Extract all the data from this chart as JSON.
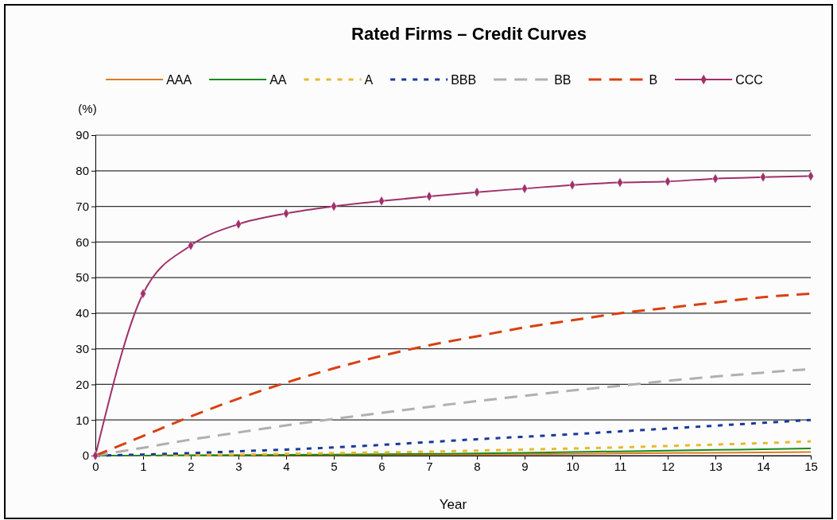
{
  "chart_data": {
    "type": "line",
    "title": "Rated Firms – Credit Curves",
    "xlabel": "Year",
    "ylabel": "(%)",
    "x": [
      0,
      1,
      2,
      3,
      4,
      5,
      6,
      7,
      8,
      9,
      10,
      11,
      12,
      13,
      14,
      15
    ],
    "xlim": [
      0,
      15
    ],
    "xticks": [
      0,
      1,
      2,
      3,
      4,
      5,
      6,
      7,
      8,
      9,
      10,
      11,
      12,
      13,
      14,
      15
    ],
    "ylim": [
      0,
      90
    ],
    "yticks": [
      0,
      10,
      20,
      30,
      40,
      50,
      60,
      70,
      80,
      90
    ],
    "grid": "y",
    "legend": "top",
    "marker": "none",
    "series": [
      {
        "name": "AAA",
        "color": "#e07b20",
        "line_style": "solid",
        "values": [
          0,
          0,
          0,
          0.1,
          0.1,
          0.1,
          0.2,
          0.2,
          0.3,
          0.4,
          0.5,
          0.6,
          0.7,
          0.8,
          0.9,
          1
        ]
      },
      {
        "name": "AA",
        "color": "#1a8a1a",
        "line_style": "solid",
        "values": [
          0,
          0,
          0.1,
          0.1,
          0.2,
          0.3,
          0.4,
          0.5,
          0.6,
          0.8,
          1,
          1.2,
          1.4,
          1.6,
          1.8,
          2
        ]
      },
      {
        "name": "A",
        "color": "#e8b830",
        "line_style": "dotted",
        "values": [
          0,
          0.1,
          0.2,
          0.3,
          0.5,
          0.7,
          0.9,
          1.1,
          1.4,
          1.7,
          2,
          2.3,
          2.7,
          3.1,
          3.5,
          4
        ]
      },
      {
        "name": "BBB",
        "color": "#1a3a9a",
        "line_style": "dotted",
        "values": [
          0,
          0.3,
          0.7,
          1.2,
          1.7,
          2.3,
          3,
          3.8,
          4.6,
          5.3,
          6,
          6.8,
          7.6,
          8.4,
          9.2,
          10
        ]
      },
      {
        "name": "BB",
        "color": "#b0b0b0",
        "line_style": "dashed",
        "values": [
          0,
          2.2,
          4.5,
          6.5,
          8.5,
          10.3,
          12,
          13.7,
          15.3,
          16.8,
          18.3,
          19.6,
          21,
          22.2,
          23.3,
          24.3
        ]
      },
      {
        "name": "B",
        "color": "#d84010",
        "line_style": "dashed",
        "values": [
          0,
          5.5,
          11,
          16,
          20.5,
          24.5,
          28,
          31,
          33.5,
          36,
          38,
          40,
          41.5,
          43,
          44.5,
          45.5
        ]
      },
      {
        "name": "CCC",
        "color": "#a0306a",
        "line_style": "solid",
        "marker": "diamond",
        "values": [
          0,
          45.5,
          59,
          65,
          68,
          70,
          71.5,
          72.8,
          74,
          75,
          76,
          76.7,
          77,
          77.8,
          78.2,
          78.5
        ]
      }
    ]
  }
}
